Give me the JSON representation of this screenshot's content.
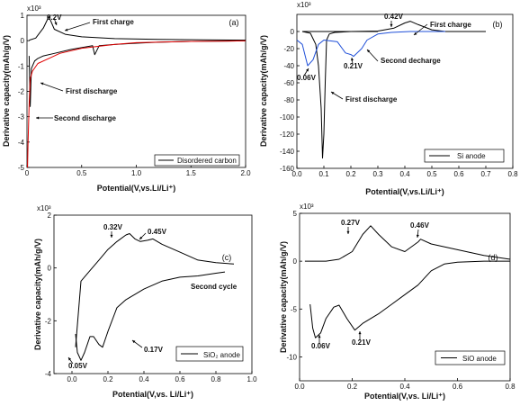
{
  "chart_data": [
    {
      "panel": "(a)",
      "type": "line",
      "xlabel": "Potential(V,vs.Li/Li⁺)",
      "ylabel": "Derivative capacity(mAh/g/V)",
      "scale_label": "x10³",
      "xlim": [
        0,
        2.0
      ],
      "ylim": [
        -5,
        1
      ],
      "xticks": [
        "0",
        "0.5",
        "1.0",
        "1.5",
        "2.0"
      ],
      "yticks": [
        "1",
        "0",
        "-1",
        "-2",
        "-3",
        "-4",
        "-5"
      ],
      "legend": "Disordered carbon",
      "series": [
        {
          "color": "#000000",
          "x": [
            0.02,
            0.08,
            0.15,
            0.2,
            0.25,
            0.35,
            0.5,
            0.8,
            1.2,
            1.6,
            2.0
          ],
          "y": [
            0.02,
            0.1,
            0.5,
            0.95,
            0.45,
            0.25,
            0.15,
            0.08,
            0.05,
            0.03,
            0.02
          ]
        },
        {
          "color": "#000000",
          "x": [
            0.02,
            0.03,
            0.04,
            0.05,
            0.07,
            0.1,
            0.15,
            0.25,
            0.4,
            0.6,
            0.62,
            0.66,
            0.8,
            1.0,
            1.2,
            1.5,
            2.0
          ],
          "y": [
            -0.6,
            -2.6,
            -1.1,
            -1.0,
            -0.8,
            -0.7,
            -0.6,
            -0.5,
            -0.35,
            -0.2,
            -0.55,
            -0.2,
            -0.15,
            -0.1,
            -0.06,
            -0.03,
            -0.01
          ]
        },
        {
          "color": "#e00000",
          "x": [
            0.005,
            0.01,
            0.02,
            0.03,
            0.05,
            0.1,
            0.2,
            0.3,
            0.5,
            0.8,
            1.0,
            1.5,
            2.0
          ],
          "y": [
            -5.0,
            -4.0,
            -2.5,
            -1.5,
            -1.2,
            -0.9,
            -0.7,
            -0.5,
            -0.3,
            -0.15,
            -0.08,
            -0.03,
            -0.01
          ]
        }
      ],
      "annotations": [
        {
          "text": "0.2V"
        },
        {
          "text": "First charge"
        },
        {
          "text": "First discharge"
        },
        {
          "text": "Second discharge"
        }
      ]
    },
    {
      "panel": "(b)",
      "type": "line",
      "xlabel": "Potential(V,vs.Li/Li⁺)",
      "ylabel": "Derivative capacity(mAh/g/V)",
      "scale_label": "x10³",
      "xlim": [
        0,
        0.8
      ],
      "ylim": [
        -160,
        20
      ],
      "xticks": [
        "0.0",
        "0.1",
        "0.2",
        "0.3",
        "0.4",
        "0.5",
        "0.6",
        "0.7",
        "0.8"
      ],
      "yticks": [
        "0",
        "-20",
        "-40",
        "-60",
        "-80",
        "-100",
        "-120",
        "-140",
        "-160"
      ],
      "legend": "Si anode",
      "series": [
        {
          "color": "#000000",
          "x": [
            0.02,
            0.1,
            0.2,
            0.3,
            0.36,
            0.4,
            0.42,
            0.45,
            0.5,
            0.55,
            0.6,
            0.7
          ],
          "y": [
            0,
            0,
            0,
            0.5,
            4,
            10,
            12,
            8,
            2,
            0,
            0,
            0
          ]
        },
        {
          "color": "#000000",
          "x": [
            0.02,
            0.05,
            0.07,
            0.08,
            0.09,
            0.095,
            0.1,
            0.105,
            0.11,
            0.12,
            0.14,
            0.2,
            0.3
          ],
          "y": [
            0,
            -2,
            -15,
            -40,
            -90,
            -148,
            -120,
            -60,
            -10,
            -3,
            -1,
            0,
            0
          ]
        },
        {
          "color": "#1f4fd8",
          "x": [
            0.0,
            0.02,
            0.04,
            0.06,
            0.08,
            0.1,
            0.15,
            0.18,
            0.2,
            0.21,
            0.24,
            0.26,
            0.3,
            0.35,
            0.42,
            0.5,
            0.55
          ],
          "y": [
            -10,
            -15,
            -40,
            -33,
            -15,
            -10,
            -12,
            -25,
            -27,
            -29,
            -20,
            -10,
            -3,
            -1,
            0,
            0,
            0
          ]
        }
      ],
      "annotations": [
        {
          "text": "0.42V"
        },
        {
          "text": "First charge"
        },
        {
          "text": "0.21V"
        },
        {
          "text": "Second decharge"
        },
        {
          "text": "0.06V"
        },
        {
          "text": "First discharge"
        }
      ]
    },
    {
      "panel": "(c)",
      "type": "line",
      "xlabel": "Potential(V,vs. Li/Li⁺)",
      "ylabel": "Derivative capacity(mAh/g/V)",
      "scale_label": "x10³",
      "xlim": [
        -0.1,
        1.0
      ],
      "ylim": [
        -4,
        2
      ],
      "xticks": [
        "0.0",
        "0.2",
        "0.4",
        "0.6",
        "0.8",
        "1.0"
      ],
      "yticks": [
        "2",
        "0",
        "-2",
        "-4"
      ],
      "legend": "SiO₂ anode",
      "series": [
        {
          "color": "#000000",
          "x": [
            0.02,
            0.05,
            0.1,
            0.15,
            0.2,
            0.25,
            0.3,
            0.32,
            0.35,
            0.38,
            0.42,
            0.45,
            0.5,
            0.6,
            0.7,
            0.8,
            0.9
          ],
          "y": [
            -3.0,
            -0.5,
            -0.1,
            0.3,
            0.7,
            1.0,
            1.25,
            1.3,
            1.1,
            1.0,
            1.05,
            1.1,
            0.9,
            0.6,
            0.3,
            0.2,
            0.15
          ]
        },
        {
          "color": "#000000",
          "x": [
            0.02,
            0.03,
            0.05,
            0.07,
            0.1,
            0.12,
            0.15,
            0.17,
            0.2,
            0.25,
            0.3,
            0.4,
            0.5,
            0.6,
            0.7,
            0.8,
            0.85
          ],
          "y": [
            -2.5,
            -3.2,
            -3.5,
            -3.2,
            -2.6,
            -2.6,
            -2.9,
            -3.0,
            -2.4,
            -1.5,
            -1.2,
            -0.8,
            -0.5,
            -0.35,
            -0.3,
            -0.2,
            -0.15
          ]
        }
      ],
      "annotations": [
        {
          "text": "0.32V"
        },
        {
          "text": "0.45V"
        },
        {
          "text": "Second cycle"
        },
        {
          "text": "0.17V"
        },
        {
          "text": "0.05V"
        }
      ]
    },
    {
      "panel": "(d)",
      "type": "line",
      "xlabel": "Potential(V,vs. Li/Li⁺)",
      "ylabel": "Derivative capacity(mAh/g/V)",
      "scale_label": "x10³",
      "xlim": [
        0,
        0.8
      ],
      "ylim": [
        -12.5,
        5
      ],
      "xticks": [
        "0.0",
        "0.2",
        "0.4",
        "0.6",
        "0.8"
      ],
      "yticks": [
        "5",
        "0",
        "-5",
        "-10"
      ],
      "legend": "SiO anode",
      "series": [
        {
          "color": "#000000",
          "x": [
            0.02,
            0.1,
            0.15,
            0.2,
            0.24,
            0.27,
            0.3,
            0.35,
            0.4,
            0.45,
            0.46,
            0.5,
            0.6,
            0.7,
            0.8
          ],
          "y": [
            0,
            0,
            0.2,
            1.0,
            2.8,
            3.7,
            2.8,
            1.5,
            1.0,
            2.0,
            2.3,
            1.8,
            1.2,
            0.6,
            0.2
          ]
        },
        {
          "color": "#000000",
          "x": [
            0.04,
            0.05,
            0.06,
            0.08,
            0.1,
            0.13,
            0.15,
            0.18,
            0.21,
            0.24,
            0.3,
            0.35,
            0.4,
            0.45,
            0.5,
            0.55,
            0.6,
            0.7,
            0.8
          ],
          "y": [
            -4.5,
            -7,
            -8.0,
            -7.5,
            -6,
            -4.8,
            -4.6,
            -6.0,
            -7.2,
            -6.5,
            -5.5,
            -4.5,
            -3.5,
            -2.5,
            -1.0,
            -0.3,
            -0.1,
            0,
            0
          ]
        }
      ],
      "annotations": [
        {
          "text": "0.27V"
        },
        {
          "text": "0.46V"
        },
        {
          "text": "0.06V"
        },
        {
          "text": "0.21V"
        }
      ]
    }
  ]
}
